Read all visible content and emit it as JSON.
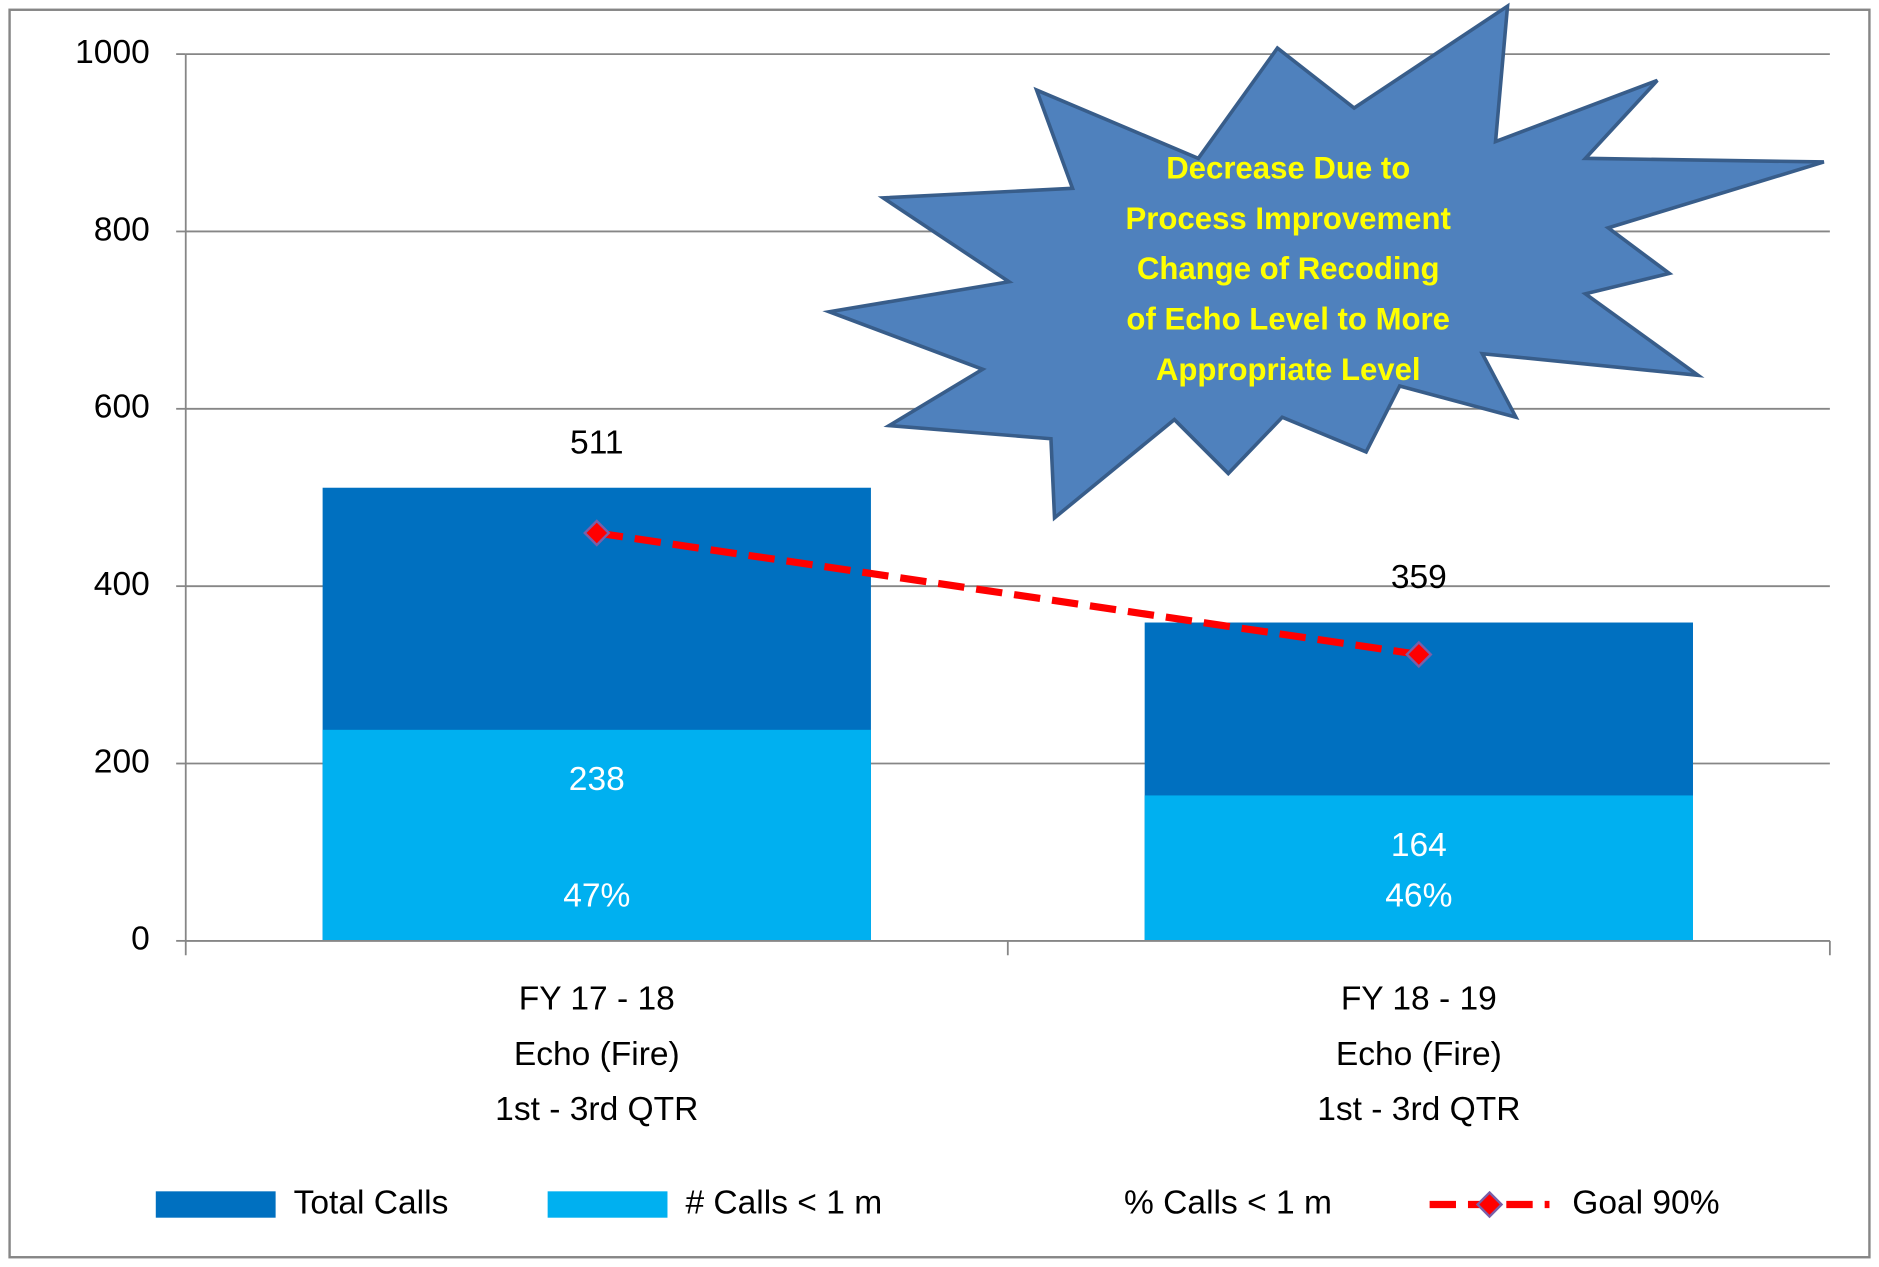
{
  "chart_data": {
    "type": "bar",
    "categories": [
      [
        "FY 17 - 18",
        "Echo (Fire)",
        "1st - 3rd QTR"
      ],
      [
        "FY 18 - 19",
        "Echo (Fire)",
        "1st - 3rd QTR"
      ]
    ],
    "series": [
      {
        "name": "Total Calls",
        "type": "bar",
        "color": "#0070c0",
        "values": [
          511,
          359
        ]
      },
      {
        "name": "# Calls < 1 m",
        "type": "bar",
        "color": "#00b0f0",
        "values": [
          238,
          164
        ]
      },
      {
        "name": "% Calls < 1 m",
        "type": "label",
        "values": [
          47,
          46
        ],
        "value_labels": [
          "47%",
          "46%"
        ]
      },
      {
        "name": "Goal 90%",
        "type": "line",
        "color": "#ff0000",
        "values": [
          460,
          323
        ]
      }
    ],
    "ylim": [
      0,
      1000
    ],
    "yticks": [
      0,
      200,
      400,
      600,
      800,
      1000
    ],
    "grid": true,
    "legend": "bottom",
    "annotation": [
      "Decrease Due to",
      "Process Improvement",
      "Change of Recoding",
      "of Echo Level to More",
      "Appropriate Level"
    ]
  }
}
